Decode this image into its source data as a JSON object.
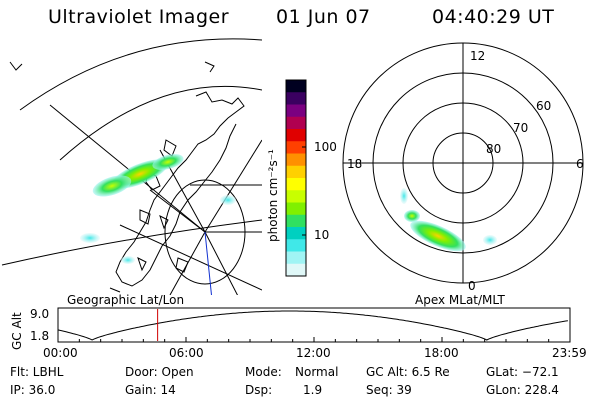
{
  "header": {
    "instrument": "Ultraviolet Imager",
    "date": "01 Jun 07",
    "time": "04:40:29 UT"
  },
  "left_map": {
    "caption": "Geographic Lat/Lon"
  },
  "colorbar": {
    "unit_label": "photon cm⁻²s⁻¹",
    "ticks": [
      "100",
      "10"
    ],
    "colors": [
      "#000020",
      "#3a0060",
      "#7a0080",
      "#b00050",
      "#e00000",
      "#ff4000",
      "#ff9000",
      "#ffd000",
      "#ffff00",
      "#c8ff00",
      "#80f000",
      "#30e060",
      "#00d0c0",
      "#40e8e8",
      "#a0f4f4",
      "#e0f8f8"
    ]
  },
  "polar_plot": {
    "caption": "Apex MLat/MLT",
    "mlt_labels": [
      "12",
      "18",
      "6",
      "0"
    ],
    "lat_labels": [
      "60",
      "70",
      "80"
    ]
  },
  "altitude_strip": {
    "ylabel": "GC Alt",
    "y_ticks": [
      "9.0",
      "1.8"
    ],
    "x_ticks": [
      "00:00",
      "06:00",
      "12:00",
      "18:00",
      "23:59"
    ],
    "current_time_marker_hours": 4.67
  },
  "status": {
    "row1": [
      {
        "key": "flt",
        "text": "Flt: LBHL"
      },
      {
        "key": "door",
        "text": "Door: Open"
      },
      {
        "key": "mode",
        "text": "Mode:"
      },
      {
        "key": "mode_val",
        "text": "Normal"
      },
      {
        "key": "gcalt",
        "text": "GC Alt: 6.5 Re"
      },
      {
        "key": "glat",
        "text": "GLat: −72.1"
      }
    ],
    "row2": [
      {
        "key": "ip",
        "text": "IP: 36.0"
      },
      {
        "key": "gain",
        "text": "Gain: 14"
      },
      {
        "key": "dsp",
        "text": "Dsp:"
      },
      {
        "key": "dsp_val",
        "text": "1.9"
      },
      {
        "key": "seq",
        "text": "Seq: 39"
      },
      {
        "key": "glon",
        "text": "GLon: 228.4"
      }
    ]
  }
}
